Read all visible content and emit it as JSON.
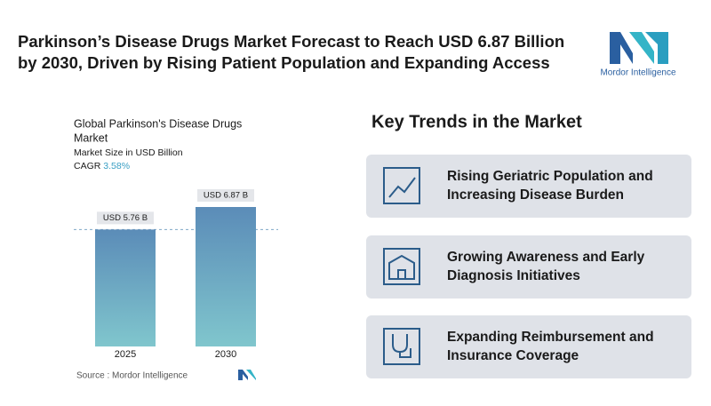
{
  "header": {
    "title_lines": [
      "Parkinson’s Disease Drugs Market Forecast to Reach USD 6.87 Billion",
      "by 2030, Driven by Rising Patient Population and Expanding Access"
    ],
    "logo_text": "Mordor Intelligence"
  },
  "chart_data": {
    "type": "bar",
    "title_lines": [
      "Global Parkinson's Disease Drugs",
      "Market"
    ],
    "subtitle": "Market Size in USD Billion",
    "cagr_label": "CAGR",
    "cagr_value": "3.58%",
    "categories": [
      "2025",
      "2030"
    ],
    "values": [
      5.76,
      6.87
    ],
    "value_labels": [
      "USD 5.76 B",
      "USD 6.87 B"
    ],
    "color_top": "#5b8cb8",
    "color_bottom": "#80c6cd",
    "source": "Source : Mordor Intelligence"
  },
  "trends": {
    "title": "Key Trends in the Market",
    "items": [
      {
        "lines": [
          "Rising Geriatric Population and",
          "Increasing Disease Burden"
        ]
      },
      {
        "lines": [
          "Growing Awareness and Early",
          "Diagnosis Initiatives"
        ]
      },
      {
        "lines": [
          "Expanding Reimbursement and",
          "Insurance Coverage"
        ]
      }
    ]
  }
}
